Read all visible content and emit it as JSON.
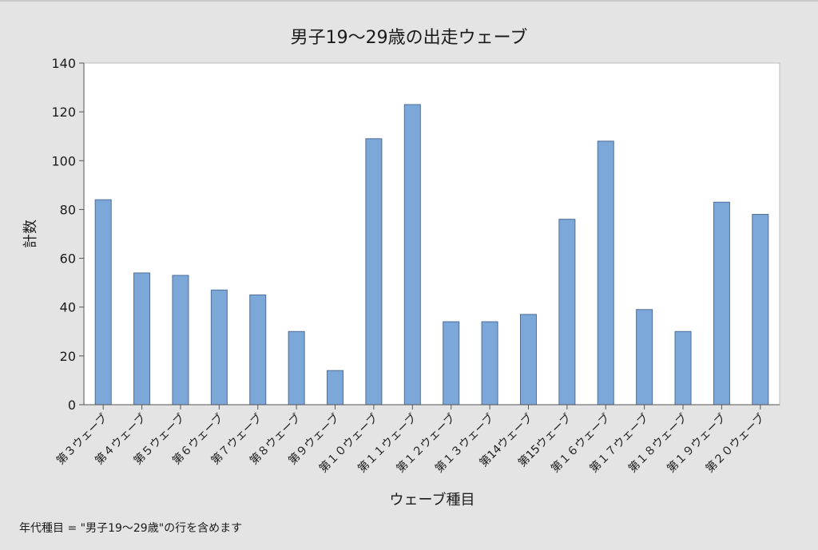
{
  "chart_data": {
    "type": "bar",
    "title": "男子19～29歳の出走ウェーブ",
    "xlabel": "ウェーブ種目",
    "ylabel": "計数",
    "categories": [
      "第３ウェーブ",
      "第４ウェーブ",
      "第５ウェーブ",
      "第６ウェーブ",
      "第７ウェーブ",
      "第８ウェーブ",
      "第９ウェーブ",
      "第１０ウェーブ",
      "第１１ウェーブ",
      "第１２ウェーブ",
      "第１３ウェーブ",
      "第14ウェーブ",
      "第15ウェーブ",
      "第１６ウェーブ",
      "第１７ウェーブ",
      "第１８ウェーブ",
      "第１９ウェーブ",
      "第２０ウェーブ"
    ],
    "values": [
      84,
      54,
      53,
      47,
      45,
      30,
      14,
      109,
      123,
      34,
      34,
      37,
      76,
      108,
      39,
      30,
      83,
      78
    ],
    "ylim": [
      0,
      140
    ],
    "yticks": [
      0,
      20,
      40,
      60,
      80,
      100,
      120,
      140
    ],
    "bar_color": "#7ba7d9",
    "bar_edge_color": "#4f6d95",
    "plot_background": "#ffffff",
    "grid": false,
    "legend": "none"
  },
  "footnote": "年代種目 = \"男子19～29歳\"の行を含めます"
}
